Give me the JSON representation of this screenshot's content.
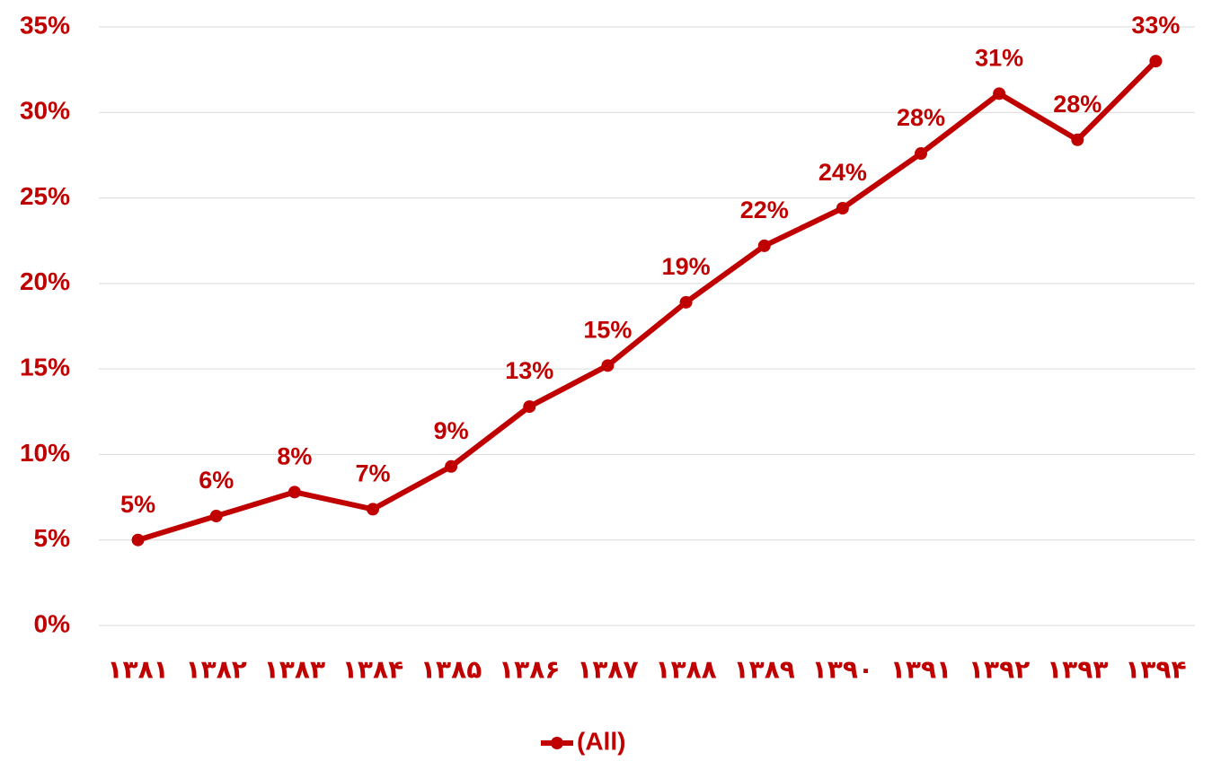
{
  "chart_data": {
    "type": "line",
    "categories": [
      "۱۳۸۱",
      "۱۳۸۲",
      "۱۳۸۳",
      "۱۳۸۴",
      "۱۳۸۵",
      "۱۳۸۶",
      "۱۳۸۷",
      "۱۳۸۸",
      "۱۳۸۹",
      "۱۳۹۰",
      "۱۳۹۱",
      "۱۳۹۲",
      "۱۳۹۳",
      "۱۳۹۴"
    ],
    "series": [
      {
        "name": "(All)",
        "color": "#c00000",
        "values": [
          5.0,
          6.4,
          7.8,
          6.8,
          9.3,
          12.8,
          15.2,
          18.9,
          22.2,
          24.4,
          27.6,
          31.1,
          28.4,
          33.0
        ],
        "value_labels": [
          "5%",
          "6%",
          "8%",
          "7%",
          "9%",
          "13%",
          "15%",
          "19%",
          "22%",
          "24%",
          "28%",
          "31%",
          "28%",
          "33%"
        ]
      }
    ],
    "ylim": [
      0,
      35
    ],
    "yticks": [
      {
        "value": 0,
        "label": "0%"
      },
      {
        "value": 5,
        "label": "5%"
      },
      {
        "value": 10,
        "label": "10%"
      },
      {
        "value": 15,
        "label": "15%"
      },
      {
        "value": 20,
        "label": "20%"
      },
      {
        "value": 25,
        "label": "25%"
      },
      {
        "value": 30,
        "label": "30%"
      },
      {
        "value": 35,
        "label": "35%"
      }
    ],
    "grid": true,
    "legend": "bottom"
  }
}
